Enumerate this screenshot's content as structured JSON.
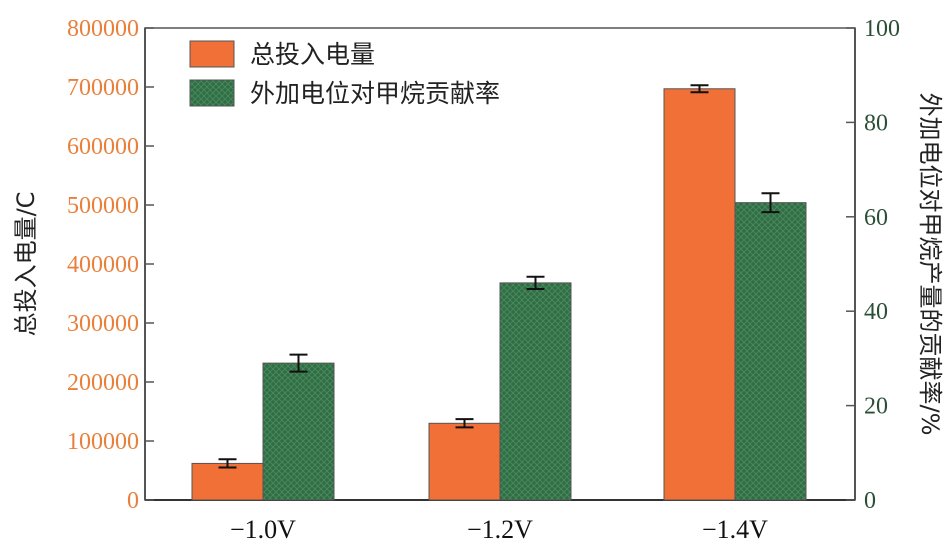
{
  "chart_data": {
    "type": "bar",
    "categories": [
      "−1.0V",
      "−1.2V",
      "−1.4V"
    ],
    "series": [
      {
        "name": "总投入电量",
        "axis": "left",
        "values": [
          62000,
          130000,
          697000
        ],
        "errors": [
          7000,
          7000,
          6000
        ],
        "color": "#f07038"
      },
      {
        "name": "外加电位对甲烷贡献率",
        "axis": "right",
        "values": [
          29,
          46,
          63
        ],
        "errors": [
          1.8,
          1.3,
          2.0
        ],
        "color": "#2f6e45"
      }
    ],
    "y_left": {
      "label": "总投入电量/C",
      "ylim": [
        0,
        800000
      ],
      "ticks": [
        "0",
        "100000",
        "200000",
        "300000",
        "400000",
        "500000",
        "600000",
        "700000",
        "800000"
      ],
      "color": "#e8803c"
    },
    "y_right": {
      "label": "外加电位对甲烷产量的贡献率/%",
      "ylim": [
        0,
        100
      ],
      "ticks": [
        "0",
        "20",
        "40",
        "60",
        "80",
        "100"
      ],
      "color": "#2b4f36"
    },
    "xlabel": "",
    "legend_position": "top-left",
    "grid": false
  }
}
